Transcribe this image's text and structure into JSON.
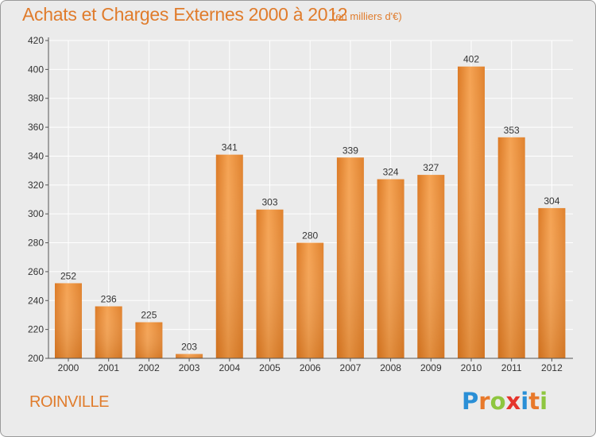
{
  "chart_data": {
    "type": "bar",
    "title": "Achats et Charges Externes 2000 à 2012",
    "subtitle": "(en milliers d'€)",
    "categories": [
      "2000",
      "2001",
      "2002",
      "2003",
      "2004",
      "2005",
      "2006",
      "2007",
      "2008",
      "2009",
      "2010",
      "2011",
      "2012"
    ],
    "values": [
      252,
      236,
      225,
      203,
      341,
      303,
      280,
      339,
      324,
      327,
      402,
      353,
      304
    ],
    "ylim": [
      200,
      420
    ],
    "yticks": [
      "200",
      "220",
      "240",
      "260",
      "280",
      "300",
      "320",
      "340",
      "360",
      "380",
      "400",
      "420"
    ],
    "grid": true,
    "bar_color": "#ef9340"
  },
  "commune": "ROINVILLE",
  "logo": {
    "text": "Proxiti",
    "letters": [
      "P",
      "r",
      "o",
      "x",
      "i",
      "t",
      "i"
    ],
    "colors": [
      "#2a8fd6",
      "#e8792b",
      "#8ec63f",
      "#e5342c",
      "#2a8fd6",
      "#e8792b",
      "#8ec63f"
    ]
  },
  "colors": {
    "accent": "#e07c2c",
    "background": "#ebebeb",
    "grid": "#ffffff",
    "axis": "#555555"
  }
}
